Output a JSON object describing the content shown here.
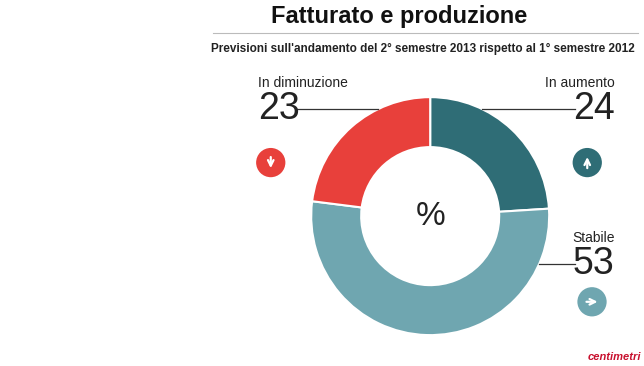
{
  "chart_data": {
    "type": "pie",
    "title": "Fatturato e produzione",
    "subtitle": "Previsioni sull'andamento del 2° semestre 2013 rispetto al 1° semestre 2012",
    "categories": [
      "In aumento",
      "Stabile",
      "In diminuzione"
    ],
    "values": [
      24,
      53,
      23
    ],
    "colors": [
      "#2f6d76",
      "#6fa6b0",
      "#e8403b"
    ],
    "data_labels": true,
    "center_label": "%",
    "source": "centimetri"
  }
}
